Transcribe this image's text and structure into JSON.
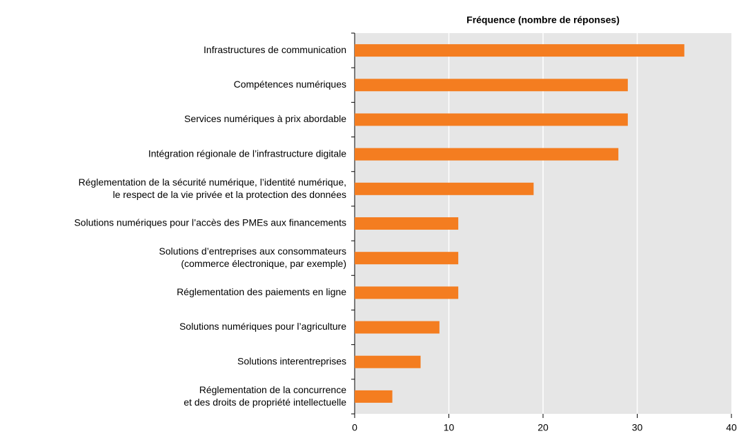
{
  "chart_data": {
    "type": "barh",
    "title": "Fréquence (nombre de réponses)",
    "categories": [
      "Infrastructures de communication",
      "Compétences numériques",
      "Services numériques à prix abordable",
      "Intégration régionale de l’infrastructure digitale",
      "Réglementation de la sécurité numérique, l’identité numérique,\nle respect de la vie privée et la protection des données",
      "Solutions numériques pour l’accès des PMEs aux financements",
      "Solutions d’entreprises aux consommateurs\n(commerce électronique, par exemple)",
      "Réglementation des paiements en ligne",
      "Solutions numériques pour l’agriculture",
      "Solutions interentreprises",
      "Réglementation de la concurrence\net des droits de propriété intellectuelle"
    ],
    "values": [
      35,
      29,
      29,
      28,
      19,
      11,
      11,
      11,
      9,
      7,
      4
    ],
    "color": "#f47d20",
    "xlim": [
      0,
      40
    ],
    "xticks": [
      0,
      10,
      20,
      30,
      40
    ],
    "grid": true
  }
}
